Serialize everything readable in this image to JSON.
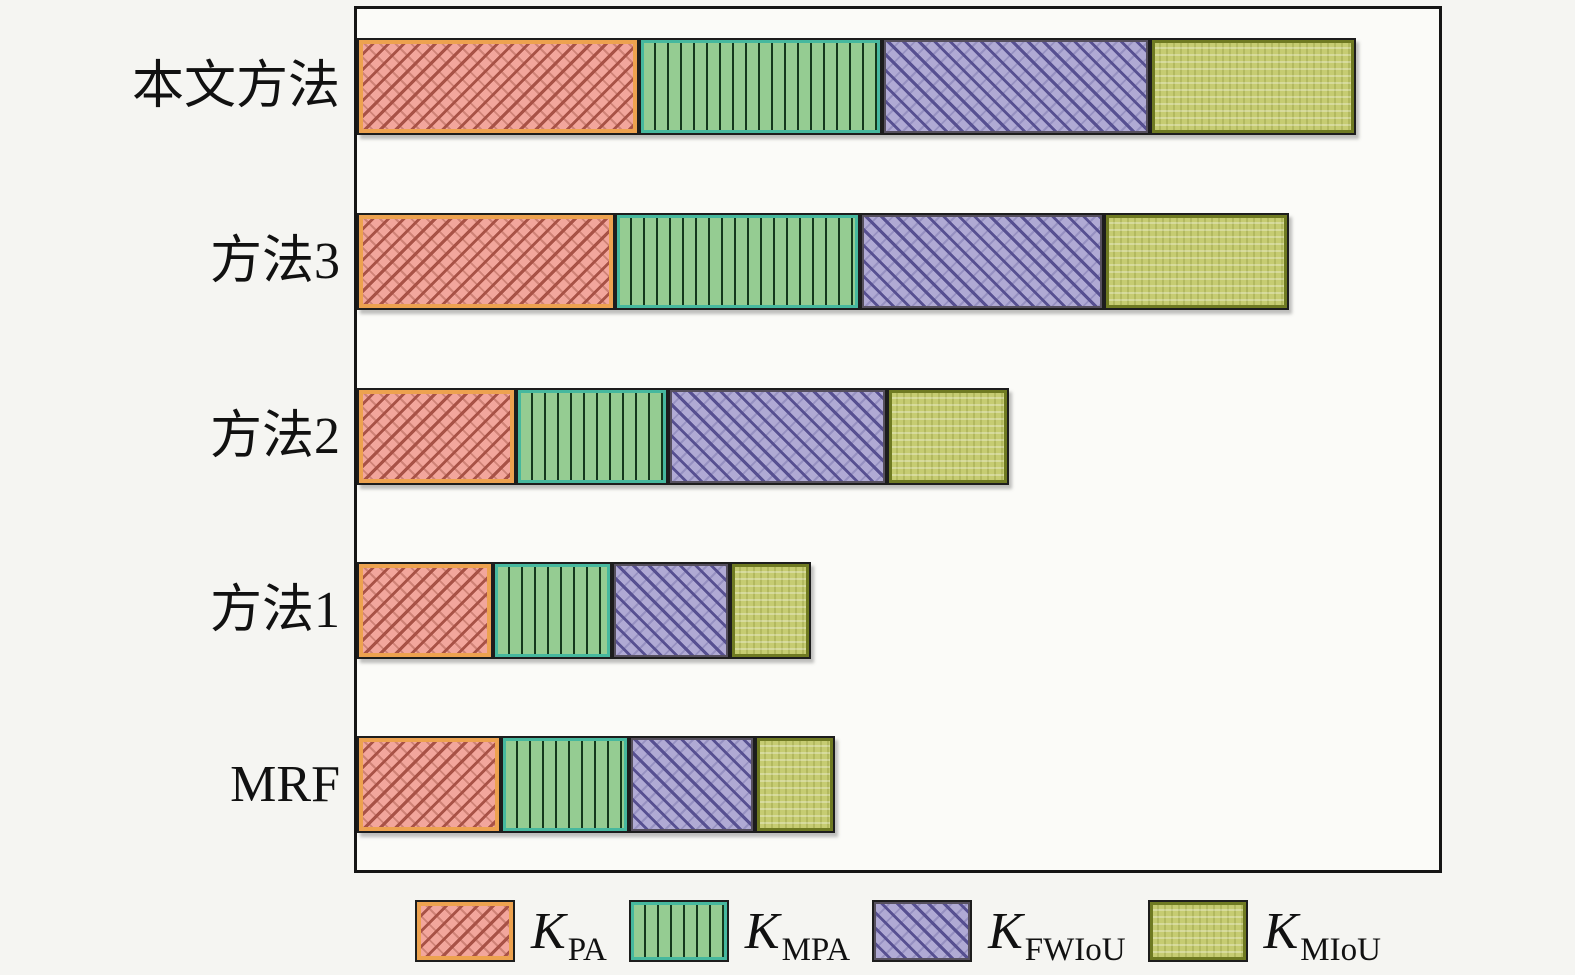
{
  "figure": {
    "background": "#f5f5f2",
    "title": ""
  },
  "chart_data": {
    "type": "bar",
    "orientation": "horizontal",
    "stacked": true,
    "title": "",
    "xlabel": "",
    "ylabel": "",
    "categories": [
      "本文方法",
      "方法3",
      "方法2",
      "方法1",
      "MRF"
    ],
    "series": [
      {
        "name": "K_PA",
        "key": "pa",
        "pct_of_axis": [
          26.1,
          23.8,
          14.7,
          12.6,
          13.3
        ]
      },
      {
        "name": "K_MPA",
        "key": "mpa",
        "pct_of_axis": [
          22.4,
          22.7,
          14.0,
          11.0,
          11.8
        ]
      },
      {
        "name": "K_FWIoU",
        "key": "fwiou",
        "pct_of_axis": [
          24.8,
          22.5,
          20.3,
          10.9,
          11.7
        ]
      },
      {
        "name": "K_MIoU",
        "key": "miou",
        "pct_of_axis": [
          19.0,
          17.1,
          11.3,
          7.5,
          7.4
        ]
      }
    ],
    "bar_totals_pct_of_axis": [
      92.3,
      86.1,
      60.3,
      42.0,
      44.2
    ],
    "x_axis": {
      "tick_labels": [],
      "note": "axis unlabeled in figure"
    },
    "grid": false,
    "legend_position": "bottom-center"
  },
  "legend": {
    "items": [
      {
        "main": "K",
        "sub": "PA",
        "key": "pa"
      },
      {
        "main": "K",
        "sub": "MPA",
        "key": "mpa"
      },
      {
        "main": "K",
        "sub": "FWIoU",
        "key": "fwiou"
      },
      {
        "main": "K",
        "sub": "MIoU",
        "key": "miou"
      }
    ]
  },
  "colors": {
    "bg": "#f5f5f2",
    "text": "#111111",
    "plot_border": "#151515",
    "pa_fill": "#f2a69c",
    "pa_hatch": "#a85246",
    "pa_edge": "#eda24f",
    "mpa_fill": "#95cc92",
    "mpa_hatch": "#14381c",
    "mpa_edge": "#46b89e",
    "fwiou_fill": "#b0aad4",
    "fwiou_hatch": "#575091",
    "fwiou_edge": "#56505e",
    "miou_fill": "#c6cc72",
    "miou_hatch": "#8a9434",
    "miou_edge": "#6f7a22"
  }
}
